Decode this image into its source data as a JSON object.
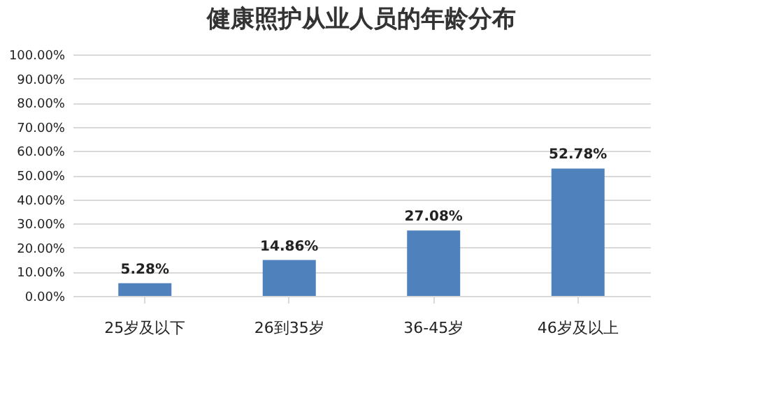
{
  "chart_data": {
    "type": "bar",
    "title": "健康照护从业人员的年龄分布",
    "categories": [
      "25岁及以下",
      "26到35岁",
      "36-45岁",
      "46岁及以上"
    ],
    "values": [
      5.28,
      14.86,
      27.08,
      52.78
    ],
    "value_labels": [
      "5.28%",
      "14.86%",
      "27.08%",
      "52.78%"
    ],
    "color": "#4f81bd",
    "ylim": [
      0,
      100
    ],
    "yticks": [
      {
        "value": 0,
        "label": "0.00%"
      },
      {
        "value": 10,
        "label": "10.00%"
      },
      {
        "value": 20,
        "label": "20.00%"
      },
      {
        "value": 30,
        "label": "30.00%"
      },
      {
        "value": 40,
        "label": "40.00%"
      },
      {
        "value": 50,
        "label": "50.00%"
      },
      {
        "value": 60,
        "label": "60.00%"
      },
      {
        "value": 70,
        "label": "70.00%"
      },
      {
        "value": 80,
        "label": "80.00%"
      },
      {
        "value": 90,
        "label": "90.00%"
      },
      {
        "value": 100,
        "label": "100.00%"
      }
    ],
    "grid": true
  }
}
